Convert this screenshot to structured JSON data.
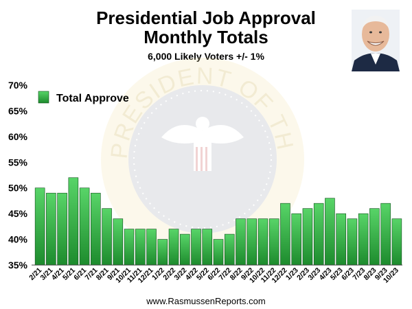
{
  "title_lines": [
    "Presidential Job Approval",
    "Monthly Totals"
  ],
  "subtitle": "6,000 Likely Voters +/- 1%",
  "footer": "www.RasmussenReports.com",
  "watermark_text": "PRESIDENT OF THE UNITED STATES",
  "colors": {
    "bar_top": "#58d468",
    "bar_bottom": "#1d8b2d",
    "bar_stroke": "#0b4d17"
  },
  "chart_data": {
    "type": "bar",
    "categories": [
      "2/21",
      "3/21",
      "4/21",
      "5/21",
      "6/21",
      "7/21",
      "8/21",
      "9/21",
      "10/21",
      "11/21",
      "12/21",
      "1/22",
      "2/22",
      "3/22",
      "4/22",
      "5/22",
      "6/22",
      "7/22",
      "8/22",
      "9/22",
      "10/22",
      "11/22",
      "12/22",
      "1/23",
      "2/23",
      "3/23",
      "4/23",
      "5/23",
      "6/23",
      "7/23",
      "8/23",
      "9/23",
      "10/23"
    ],
    "series": [
      {
        "name": "Total Approve",
        "values": [
          50,
          49,
          49,
          52,
          50,
          49,
          46,
          44,
          42,
          42,
          42,
          40,
          42,
          41,
          42,
          42,
          40,
          41,
          44,
          44,
          44,
          44,
          47,
          45,
          46,
          47,
          48,
          45,
          44,
          45,
          46,
          47,
          44
        ]
      }
    ],
    "yticks": [
      "35%",
      "40%",
      "45%",
      "50%",
      "55%",
      "60%",
      "65%",
      "70%"
    ],
    "ylim": [
      35,
      70
    ],
    "legend_position": "top-left",
    "grid": false
  }
}
